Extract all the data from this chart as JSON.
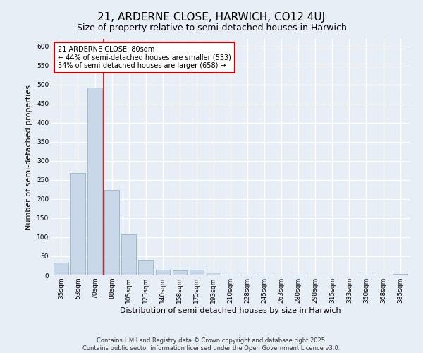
{
  "title": "21, ARDERNE CLOSE, HARWICH, CO12 4UJ",
  "subtitle": "Size of property relative to semi-detached houses in Harwich",
  "xlabel": "Distribution of semi-detached houses by size in Harwich",
  "ylabel": "Number of semi-detached properties",
  "categories": [
    "35sqm",
    "53sqm",
    "70sqm",
    "88sqm",
    "105sqm",
    "123sqm",
    "140sqm",
    "158sqm",
    "175sqm",
    "193sqm",
    "210sqm",
    "228sqm",
    "245sqm",
    "263sqm",
    "280sqm",
    "298sqm",
    "315sqm",
    "333sqm",
    "350sqm",
    "368sqm",
    "385sqm"
  ],
  "values": [
    33,
    268,
    492,
    224,
    108,
    40,
    15,
    13,
    14,
    7,
    2,
    1,
    1,
    0,
    1,
    0,
    0,
    0,
    1,
    0,
    4
  ],
  "bar_color": "#c8d8e8",
  "bar_edge_color": "#8aaabf",
  "vline_x": 2.5,
  "vline_color": "#cc0000",
  "annotation_box_text": "21 ARDERNE CLOSE: 80sqm\n← 44% of semi-detached houses are smaller (533)\n54% of semi-detached houses are larger (658) →",
  "annotation_box_color": "#cc0000",
  "annotation_box_fill": "#ffffff",
  "ylim": [
    0,
    620
  ],
  "yticks": [
    0,
    50,
    100,
    150,
    200,
    250,
    300,
    350,
    400,
    450,
    500,
    550,
    600
  ],
  "background_color": "#e8eef5",
  "grid_color": "#ffffff",
  "footer_line1": "Contains HM Land Registry data © Crown copyright and database right 2025.",
  "footer_line2": "Contains public sector information licensed under the Open Government Licence v3.0.",
  "title_fontsize": 11,
  "subtitle_fontsize": 9,
  "axis_label_fontsize": 8,
  "tick_fontsize": 6.5,
  "annotation_fontsize": 7,
  "footer_fontsize": 6
}
